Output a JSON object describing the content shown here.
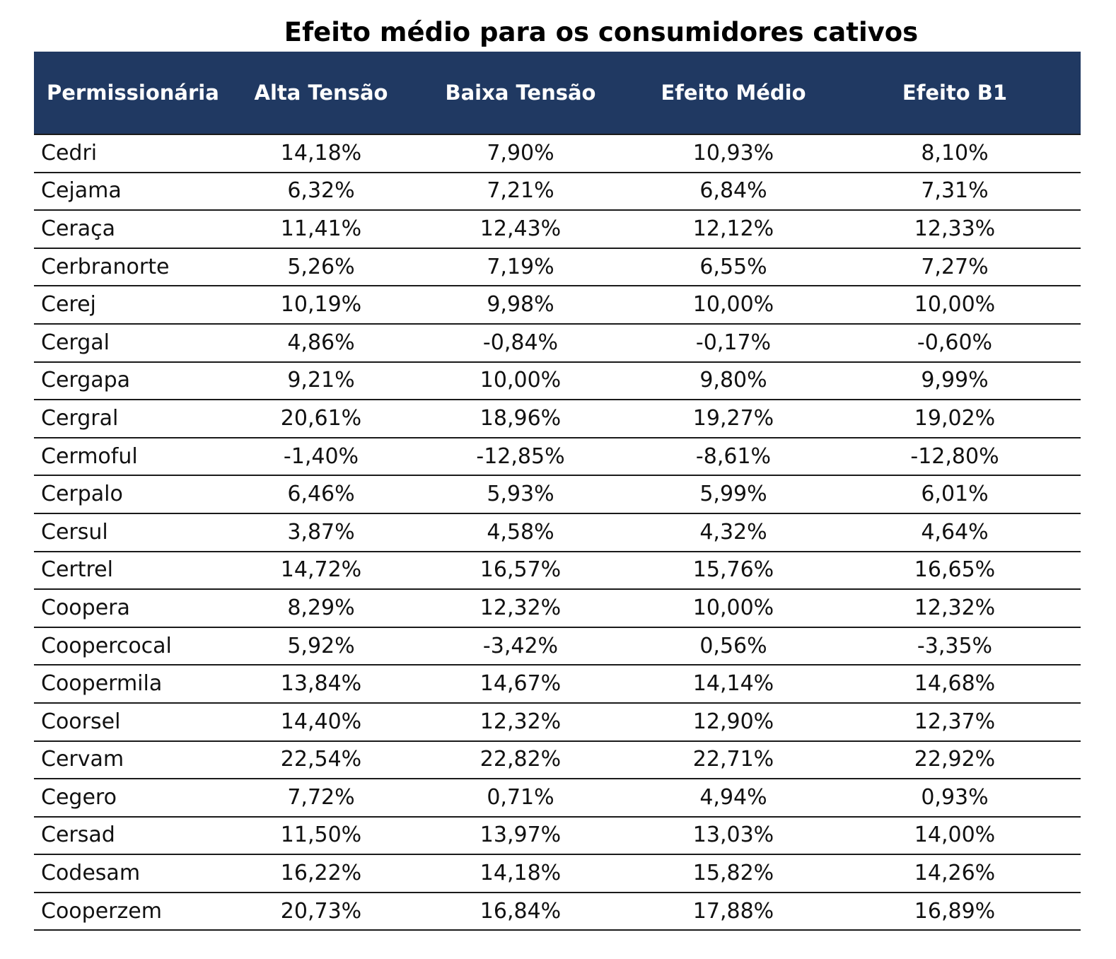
{
  "title": "Efeito médio para os consumidores cativos",
  "colors": {
    "header_background": "#203962",
    "header_text": "#ffffff",
    "row_border": "#1a1a1a"
  },
  "table": {
    "columns": [
      "Permissionária",
      "Alta Tensão",
      "Baixa Tensão",
      "Efeito Médio",
      "Efeito B1"
    ],
    "rows": [
      [
        "Cedri",
        "14,18%",
        "7,90%",
        "10,93%",
        "8,10%"
      ],
      [
        "Cejama",
        "6,32%",
        "7,21%",
        "6,84%",
        "7,31%"
      ],
      [
        "Ceraça",
        "11,41%",
        "12,43%",
        "12,12%",
        "12,33%"
      ],
      [
        "Cerbranorte",
        "5,26%",
        "7,19%",
        "6,55%",
        "7,27%"
      ],
      [
        "Cerej",
        "10,19%",
        "9,98%",
        "10,00%",
        "10,00%"
      ],
      [
        "Cergal",
        "4,86%",
        "-0,84%",
        "-0,17%",
        "-0,60%"
      ],
      [
        "Cergapa",
        "9,21%",
        "10,00%",
        "9,80%",
        "9,99%"
      ],
      [
        "Cergral",
        "20,61%",
        "18,96%",
        "19,27%",
        "19,02%"
      ],
      [
        "Cermoful",
        "-1,40%",
        "-12,85%",
        "-8,61%",
        "-12,80%"
      ],
      [
        "Cerpalo",
        "6,46%",
        "5,93%",
        "5,99%",
        "6,01%"
      ],
      [
        "Cersul",
        "3,87%",
        "4,58%",
        "4,32%",
        "4,64%"
      ],
      [
        "Certrel",
        "14,72%",
        "16,57%",
        "15,76%",
        "16,65%"
      ],
      [
        "Coopera",
        "8,29%",
        "12,32%",
        "10,00%",
        "12,32%"
      ],
      [
        "Coopercocal",
        "5,92%",
        "-3,42%",
        "0,56%",
        "-3,35%"
      ],
      [
        "Coopermila",
        "13,84%",
        "14,67%",
        "14,14%",
        "14,68%"
      ],
      [
        "Coorsel",
        "14,40%",
        "12,32%",
        "12,90%",
        "12,37%"
      ],
      [
        "Cervam",
        "22,54%",
        "22,82%",
        "22,71%",
        "22,92%"
      ],
      [
        "Cegero",
        "7,72%",
        "0,71%",
        "4,94%",
        "0,93%"
      ],
      [
        "Cersad",
        "11,50%",
        "13,97%",
        "13,03%",
        "14,00%"
      ],
      [
        "Codesam",
        "16,22%",
        "14,18%",
        "15,82%",
        "14,26%"
      ],
      [
        "Cooperzem",
        "20,73%",
        "16,84%",
        "17,88%",
        "16,89%"
      ]
    ]
  }
}
